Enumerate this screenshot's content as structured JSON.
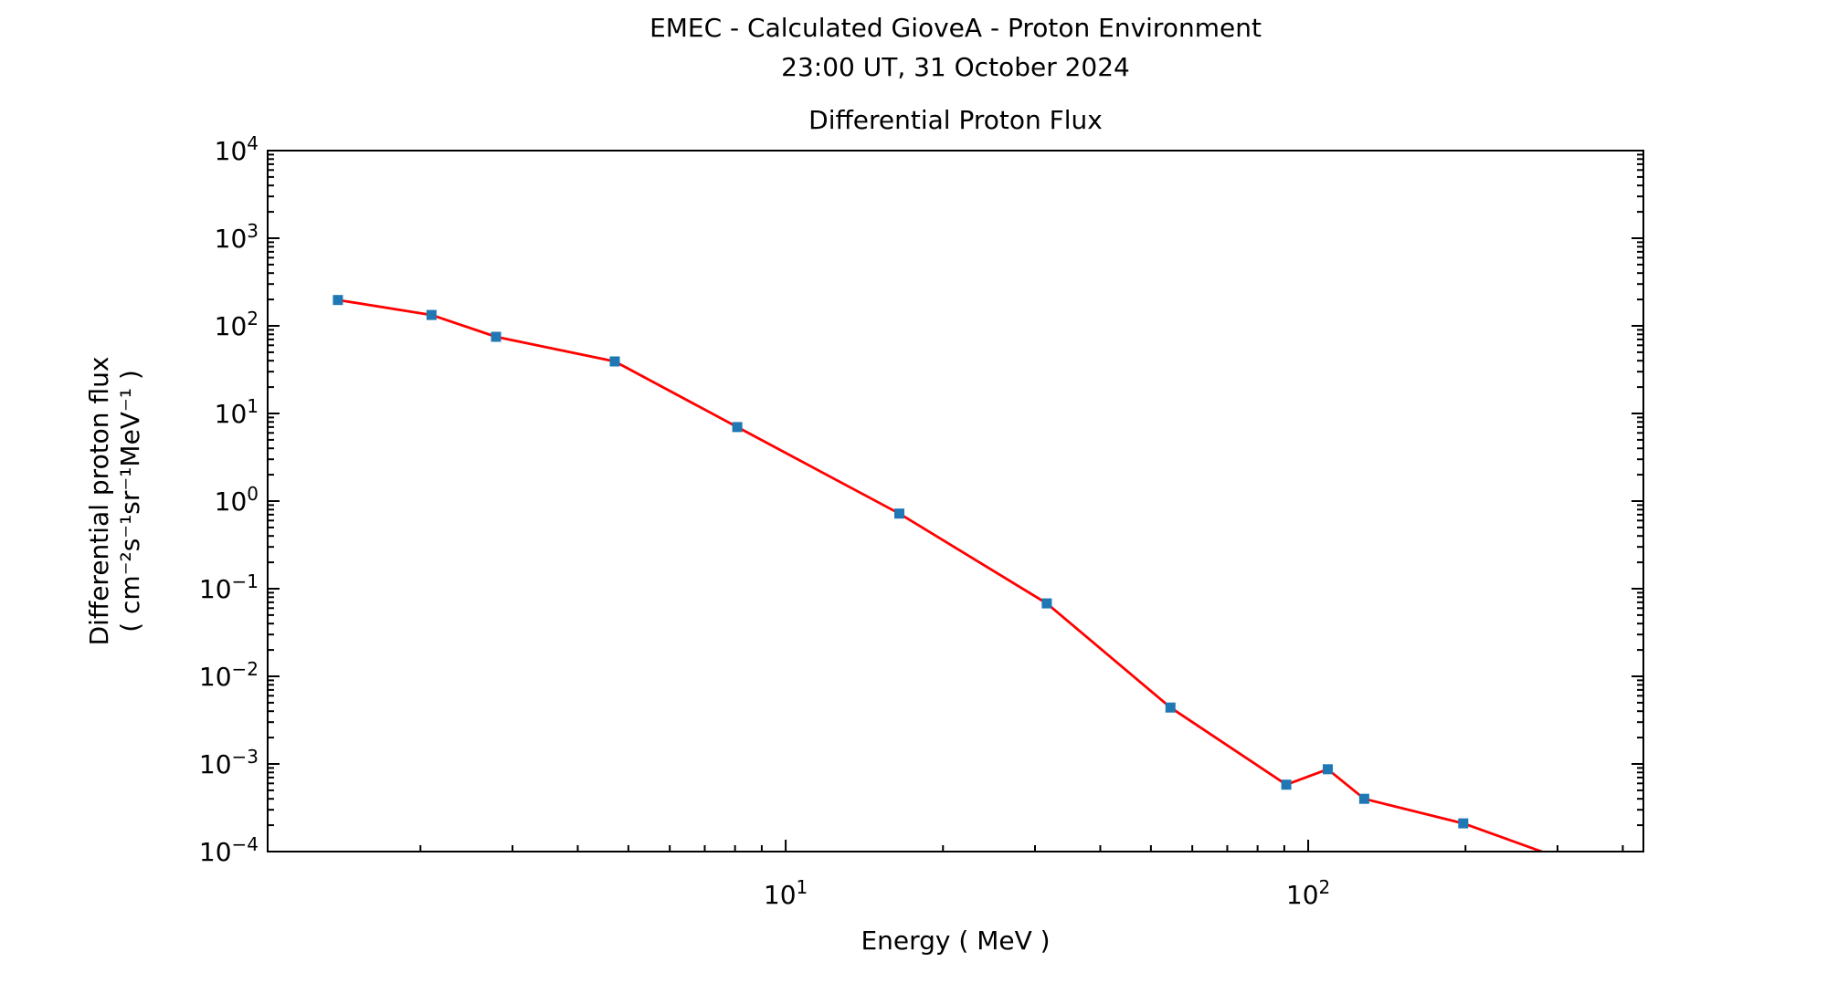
{
  "figure": {
    "title_line1": "EMEC - Calculated GioveA - Proton Environment",
    "title_line2": "23:00 UT, 31 October 2024"
  },
  "chart_data": {
    "type": "line",
    "title": "Differential Proton Flux",
    "xlabel": "Energy ( MeV )",
    "ylabel": "Differential proton flux",
    "ylabel_units": "( cm⁻²s⁻¹sr⁻¹MeV⁻¹ )",
    "x_scale": "log",
    "y_scale": "log",
    "xlim": [
      1.02,
      438
    ],
    "ylim": [
      0.0001,
      10000
    ],
    "x_major_tick_exponents": [
      1,
      2
    ],
    "y_major_tick_exponents": [
      4,
      3,
      2,
      1,
      0,
      -1,
      -2,
      -3,
      -4
    ],
    "grid": false,
    "legend_visible": false,
    "line_color": "#ff0000",
    "marker_color": "#1f77b4",
    "marker_shape": "square",
    "series": [
      {
        "name": "Differential proton flux",
        "x": [
          1.39,
          2.1,
          2.79,
          4.71,
          8.08,
          16.5,
          31.6,
          54.5,
          90.8,
          109,
          128,
          198,
          320
        ],
        "y": [
          197,
          133,
          75,
          39.2,
          7.0,
          0.72,
          0.068,
          0.0044,
          0.00058,
          0.00087,
          0.0004,
          0.00021,
          7.5e-05
        ]
      }
    ]
  }
}
